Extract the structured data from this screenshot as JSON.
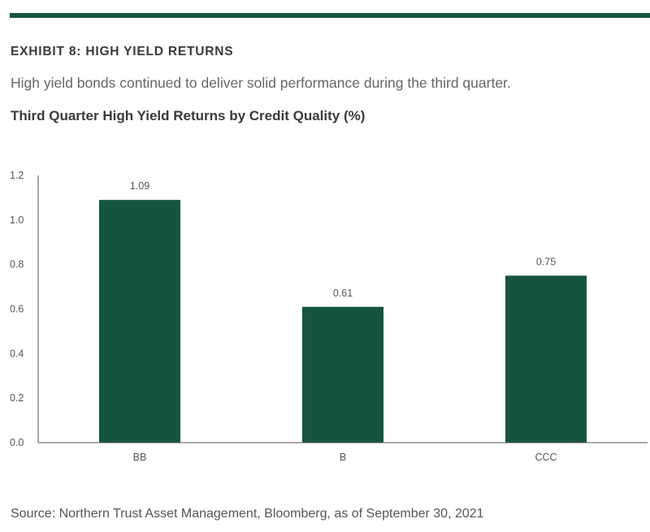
{
  "header": {
    "exhibit_label": "EXHIBIT 8: HIGH YIELD RETURNS",
    "subtitle": "High yield bonds continued to deliver solid performance during the third quarter."
  },
  "chart_data": {
    "type": "bar",
    "title": "Third Quarter High Yield Returns by Credit Quality (%)",
    "xlabel": "",
    "ylabel": "",
    "categories": [
      "BB",
      "B",
      "CCC"
    ],
    "values": [
      1.09,
      0.61,
      0.75
    ],
    "data_labels": [
      "1.09",
      "0.61",
      "0.75"
    ],
    "ylim": [
      0,
      1.2
    ],
    "yticks": [
      0.0,
      0.2,
      0.4,
      0.6,
      0.8,
      1.0,
      1.2
    ],
    "ytick_labels": [
      "0.0",
      "0.2",
      "0.4",
      "0.6",
      "0.8",
      "1.0",
      "1.2"
    ],
    "grid": false,
    "legend": "none",
    "bar_color": "#165441"
  },
  "footer": {
    "source": "Source: Northern Trust Asset Management, Bloomberg, as of September 30, 2021"
  },
  "colors": {
    "accent": "#165441"
  }
}
